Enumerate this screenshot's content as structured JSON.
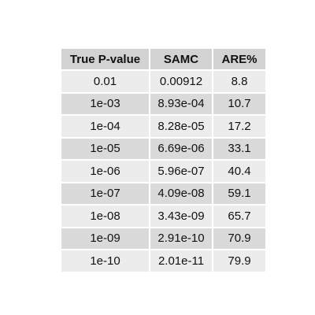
{
  "chart_data": {
    "type": "table",
    "columns": [
      "True P-value",
      "SAMC",
      "ARE%"
    ],
    "rows": [
      [
        "0.01",
        "0.00912",
        "8.8"
      ],
      [
        "1e-03",
        "8.93e-04",
        "10.7"
      ],
      [
        "1e-04",
        "8.28e-05",
        "17.2"
      ],
      [
        "1e-05",
        "6.69e-06",
        "33.1"
      ],
      [
        "1e-06",
        "5.96e-07",
        "40.4"
      ],
      [
        "1e-07",
        "4.09e-08",
        "59.1"
      ],
      [
        "1e-08",
        "3.43e-09",
        "65.7"
      ],
      [
        "1e-09",
        "2.91e-10",
        "70.9"
      ],
      [
        "1e-10",
        "2.01e-11",
        "79.9"
      ]
    ]
  },
  "colors": {
    "header_bg": "#d2d2d2",
    "row_light": "#ececec",
    "row_dark": "#dadada"
  }
}
